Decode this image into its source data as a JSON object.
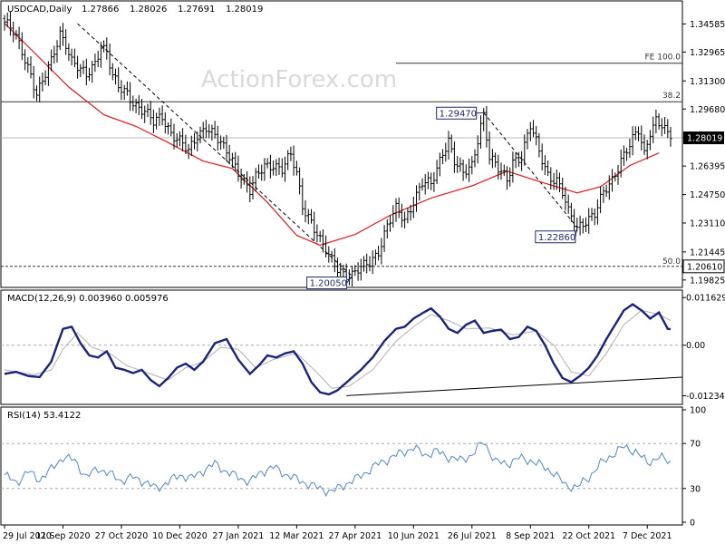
{
  "chart_data": [
    {
      "type": "candlestick",
      "panel": "price",
      "title": "USDCAD,Daily",
      "ohlc_readout": [
        "1.27866",
        "1.28026",
        "1.27691",
        "1.28019"
      ],
      "watermark": "ActionForex.com",
      "ylim": [
        1.1945,
        1.3586
      ],
      "yticks": [
        "1.34585",
        "1.32965",
        "1.31300",
        "1.29680",
        "1.28019",
        "1.26395",
        "1.24750",
        "1.23110",
        "1.21445",
        "1.19825"
      ],
      "last_price": 1.28019,
      "last_price_label": "1.28019",
      "ma_line": [
        [
          1.3462,
          0
        ],
        [
          1.333,
          8
        ],
        [
          1.3095,
          22
        ],
        [
          1.2935,
          34
        ],
        [
          1.2868,
          45
        ],
        [
          1.2775,
          56
        ],
        [
          1.2668,
          68
        ],
        [
          1.2625,
          78
        ],
        [
          1.243,
          90
        ],
        [
          1.224,
          100
        ],
        [
          1.2183,
          108
        ],
        [
          1.2245,
          120
        ],
        [
          1.2355,
          132
        ],
        [
          1.2455,
          146
        ],
        [
          1.2525,
          160
        ],
        [
          1.261,
          172
        ],
        [
          1.2545,
          184
        ],
        [
          1.2485,
          196
        ],
        [
          1.252,
          204
        ],
        [
          1.2642,
          214
        ],
        [
          1.2715,
          224
        ]
      ],
      "price_path": [
        [
          0,
          1.347
        ],
        [
          3,
          1.34
        ],
        [
          6,
          1.33
        ],
        [
          9,
          1.318
        ],
        [
          11,
          1.306
        ],
        [
          13,
          1.312
        ],
        [
          16,
          1.323
        ],
        [
          19,
          1.341
        ],
        [
          21,
          1.336
        ],
        [
          23,
          1.325
        ],
        [
          26,
          1.318
        ],
        [
          28,
          1.315
        ],
        [
          31,
          1.324
        ],
        [
          33,
          1.335
        ],
        [
          35,
          1.33
        ],
        [
          37,
          1.315
        ],
        [
          39,
          1.308
        ],
        [
          42,
          1.306
        ],
        [
          45,
          1.3
        ],
        [
          48,
          1.295
        ],
        [
          51,
          1.288
        ],
        [
          54,
          1.293
        ],
        [
          57,
          1.284
        ],
        [
          60,
          1.278
        ],
        [
          63,
          1.271
        ],
        [
          66,
          1.282
        ],
        [
          69,
          1.288
        ],
        [
          72,
          1.281
        ],
        [
          75,
          1.273
        ],
        [
          78,
          1.268
        ],
        [
          81,
          1.259
        ],
        [
          84,
          1.249
        ],
        [
          86,
          1.256
        ],
        [
          89,
          1.264
        ],
        [
          92,
          1.266
        ],
        [
          95,
          1.262
        ],
        [
          98,
          1.269
        ],
        [
          100,
          1.259
        ],
        [
          102,
          1.242
        ],
        [
          105,
          1.233
        ],
        [
          108,
          1.22
        ],
        [
          111,
          1.211
        ],
        [
          114,
          1.206
        ],
        [
          117,
          1.202
        ],
        [
          119,
          1.2005
        ],
        [
          122,
          1.204
        ],
        [
          125,
          1.209
        ],
        [
          128,
          1.216
        ],
        [
          131,
          1.229
        ],
        [
          134,
          1.238
        ],
        [
          137,
          1.233
        ],
        [
          140,
          1.245
        ],
        [
          143,
          1.254
        ],
        [
          146,
          1.252
        ],
        [
          148,
          1.262
        ],
        [
          150,
          1.273
        ],
        [
          152,
          1.28
        ],
        [
          154,
          1.267
        ],
        [
          157,
          1.258
        ],
        [
          160,
          1.264
        ],
        [
          163,
          1.289
        ],
        [
          164,
          1.2947
        ],
        [
          166,
          1.269
        ],
        [
          169,
          1.261
        ],
        [
          172,
          1.256
        ],
        [
          174,
          1.268
        ],
        [
          177,
          1.27
        ],
        [
          180,
          1.286
        ],
        [
          183,
          1.272
        ],
        [
          186,
          1.26
        ],
        [
          189,
          1.256
        ],
        [
          191,
          1.248
        ],
        [
          193,
          1.236
        ],
        [
          196,
          1.2286
        ],
        [
          199,
          1.234
        ],
        [
          202,
          1.236
        ],
        [
          205,
          1.247
        ],
        [
          208,
          1.256
        ],
        [
          211,
          1.269
        ],
        [
          214,
          1.276
        ],
        [
          217,
          1.283
        ],
        [
          219,
          1.27
        ],
        [
          221,
          1.285
        ],
        [
          223,
          1.292
        ],
        [
          225,
          1.288
        ],
        [
          227,
          1.281
        ],
        [
          228,
          1.28019
        ]
      ],
      "fib_levels": [
        {
          "label": "FE 100.0",
          "value": 1.3232
        },
        {
          "label": "38.2",
          "value": 1.301
        },
        {
          "label": "50.0",
          "value": 1.2061
        }
      ],
      "level_tag": "1.20610",
      "annotations": [
        {
          "label": "1.29470",
          "index": 164,
          "value": 1.2947,
          "side": "left"
        },
        {
          "label": "1.22860",
          "index": 196,
          "value": 1.2286,
          "side": "left"
        },
        {
          "label": "1.20050",
          "index": 119,
          "value": 1.2005,
          "side": "left"
        }
      ],
      "trendlines": [
        {
          "from": [
            25,
            1.346
          ],
          "to": [
            119,
            1.2005
          ]
        },
        {
          "from": [
            164,
            1.2947
          ],
          "to": [
            196,
            1.2286
          ]
        }
      ],
      "x_labels": [
        "29 Jul 2020",
        "11 Sep 2020",
        "27 Oct 2020",
        "10 Dec 2020",
        "27 Jan 2021",
        "12 Mar 2021",
        "27 Apr 2021",
        "10 Jun 2021",
        "26 Jul 2021",
        "8 Sep 2021",
        "22 Oct 2021",
        "7 Dec 2021"
      ],
      "x_label_indices": [
        0,
        20,
        40,
        60,
        80,
        100,
        120,
        140,
        160,
        180,
        200,
        220
      ],
      "bars": 229
    },
    {
      "type": "line",
      "panel": "macd",
      "title": "MACD(12,26,9) 0.003960 0.005976",
      "ylim": [
        -0.014,
        0.013
      ],
      "yticks": [
        "0.011629",
        "0.00",
        "-0.012348"
      ],
      "macd": [
        [
          0,
          -0.007
        ],
        [
          4,
          -0.0065
        ],
        [
          8,
          -0.0075
        ],
        [
          12,
          -0.0078
        ],
        [
          16,
          -0.004
        ],
        [
          20,
          0.004
        ],
        [
          23,
          0.0045
        ],
        [
          26,
          0.0005
        ],
        [
          29,
          -0.0025
        ],
        [
          32,
          -0.003
        ],
        [
          35,
          -0.0015
        ],
        [
          38,
          -0.0055
        ],
        [
          41,
          -0.006
        ],
        [
          44,
          -0.0068
        ],
        [
          47,
          -0.006
        ],
        [
          50,
          -0.0085
        ],
        [
          53,
          -0.01
        ],
        [
          56,
          -0.008
        ],
        [
          59,
          -0.0055
        ],
        [
          62,
          -0.0045
        ],
        [
          65,
          -0.006
        ],
        [
          68,
          -0.004
        ],
        [
          72,
          0.0005
        ],
        [
          76,
          0.0015
        ],
        [
          80,
          -0.0035
        ],
        [
          84,
          -0.007
        ],
        [
          87,
          -0.005
        ],
        [
          90,
          -0.0025
        ],
        [
          93,
          -0.003
        ],
        [
          96,
          -0.002
        ],
        [
          99,
          -0.0015
        ],
        [
          102,
          -0.0045
        ],
        [
          105,
          -0.009
        ],
        [
          108,
          -0.0115
        ],
        [
          111,
          -0.012
        ],
        [
          114,
          -0.011
        ],
        [
          118,
          -0.0085
        ],
        [
          122,
          -0.006
        ],
        [
          126,
          -0.003
        ],
        [
          130,
          0.001
        ],
        [
          134,
          0.004
        ],
        [
          137,
          0.0045
        ],
        [
          140,
          0.0065
        ],
        [
          143,
          0.0078
        ],
        [
          146,
          0.009
        ],
        [
          149,
          0.007
        ],
        [
          152,
          0.004
        ],
        [
          155,
          0.003
        ],
        [
          158,
          0.005
        ],
        [
          161,
          0.006
        ],
        [
          164,
          0.003
        ],
        [
          167,
          0.0035
        ],
        [
          170,
          0.0038
        ],
        [
          173,
          0.0015
        ],
        [
          176,
          0.002
        ],
        [
          179,
          0.0045
        ],
        [
          182,
          0.0035
        ],
        [
          185,
          0.0
        ],
        [
          188,
          -0.0045
        ],
        [
          191,
          -0.008
        ],
        [
          194,
          -0.009
        ],
        [
          197,
          -0.0075
        ],
        [
          200,
          -0.0055
        ],
        [
          203,
          -0.0025
        ],
        [
          206,
          0.0015
        ],
        [
          209,
          0.005
        ],
        [
          212,
          0.0085
        ],
        [
          215,
          0.01
        ],
        [
          218,
          0.0085
        ],
        [
          221,
          0.0065
        ],
        [
          224,
          0.008
        ],
        [
          227,
          0.004
        ],
        [
          228,
          0.0039
        ]
      ],
      "signal": [
        [
          0,
          -0.006
        ],
        [
          10,
          -0.0072
        ],
        [
          16,
          -0.006
        ],
        [
          20,
          -0.001
        ],
        [
          25,
          0.003
        ],
        [
          30,
          -0.0005
        ],
        [
          36,
          -0.002
        ],
        [
          42,
          -0.005
        ],
        [
          50,
          -0.007
        ],
        [
          56,
          -0.0085
        ],
        [
          62,
          -0.0055
        ],
        [
          68,
          -0.004
        ],
        [
          74,
          -0.0005
        ],
        [
          80,
          -0.001
        ],
        [
          86,
          -0.0055
        ],
        [
          92,
          -0.0035
        ],
        [
          100,
          -0.002
        ],
        [
          106,
          -0.006
        ],
        [
          112,
          -0.0105
        ],
        [
          118,
          -0.01
        ],
        [
          126,
          -0.006
        ],
        [
          134,
          0.001
        ],
        [
          140,
          0.0045
        ],
        [
          146,
          0.0075
        ],
        [
          152,
          0.006
        ],
        [
          158,
          0.004
        ],
        [
          166,
          0.0042
        ],
        [
          174,
          0.0025
        ],
        [
          182,
          0.0035
        ],
        [
          188,
          0.0
        ],
        [
          194,
          -0.0065
        ],
        [
          200,
          -0.0075
        ],
        [
          206,
          -0.002
        ],
        [
          212,
          0.005
        ],
        [
          218,
          0.0085
        ],
        [
          224,
          0.0075
        ],
        [
          228,
          0.006
        ]
      ],
      "trendline": {
        "from": [
          117,
          -0.0123
        ],
        "to": [
          228,
          -0.0078
        ]
      }
    },
    {
      "type": "line",
      "panel": "rsi",
      "title": "RSI(14) 53.4122",
      "ylim": [
        0,
        100
      ],
      "yticks": [
        "100",
        "70",
        "30",
        "0"
      ],
      "levels": [
        70,
        30
      ],
      "rsi": [
        [
          0,
          42
        ],
        [
          4,
          35
        ],
        [
          8,
          45
        ],
        [
          12,
          38
        ],
        [
          16,
          47
        ],
        [
          20,
          58
        ],
        [
          24,
          55
        ],
        [
          28,
          40
        ],
        [
          32,
          48
        ],
        [
          36,
          43
        ],
        [
          40,
          37
        ],
        [
          44,
          40
        ],
        [
          48,
          36
        ],
        [
          52,
          30
        ],
        [
          56,
          36
        ],
        [
          60,
          42
        ],
        [
          64,
          39
        ],
        [
          68,
          46
        ],
        [
          72,
          52
        ],
        [
          76,
          45
        ],
        [
          80,
          40
        ],
        [
          84,
          36
        ],
        [
          88,
          45
        ],
        [
          92,
          49
        ],
        [
          96,
          43
        ],
        [
          100,
          38
        ],
        [
          104,
          34
        ],
        [
          108,
          30
        ],
        [
          112,
          27
        ],
        [
          116,
          33
        ],
        [
          120,
          38
        ],
        [
          124,
          45
        ],
        [
          128,
          52
        ],
        [
          132,
          57
        ],
        [
          136,
          62
        ],
        [
          140,
          66
        ],
        [
          144,
          60
        ],
        [
          148,
          63
        ],
        [
          152,
          58
        ],
        [
          156,
          55
        ],
        [
          160,
          60
        ],
        [
          164,
          72
        ],
        [
          168,
          54
        ],
        [
          172,
          52
        ],
        [
          176,
          57
        ],
        [
          180,
          55
        ],
        [
          184,
          50
        ],
        [
          188,
          44
        ],
        [
          192,
          33
        ],
        [
          196,
          31
        ],
        [
          200,
          40
        ],
        [
          204,
          52
        ],
        [
          208,
          60
        ],
        [
          212,
          67
        ],
        [
          216,
          63
        ],
        [
          220,
          53
        ],
        [
          224,
          58
        ],
        [
          228,
          53.4
        ]
      ]
    }
  ]
}
